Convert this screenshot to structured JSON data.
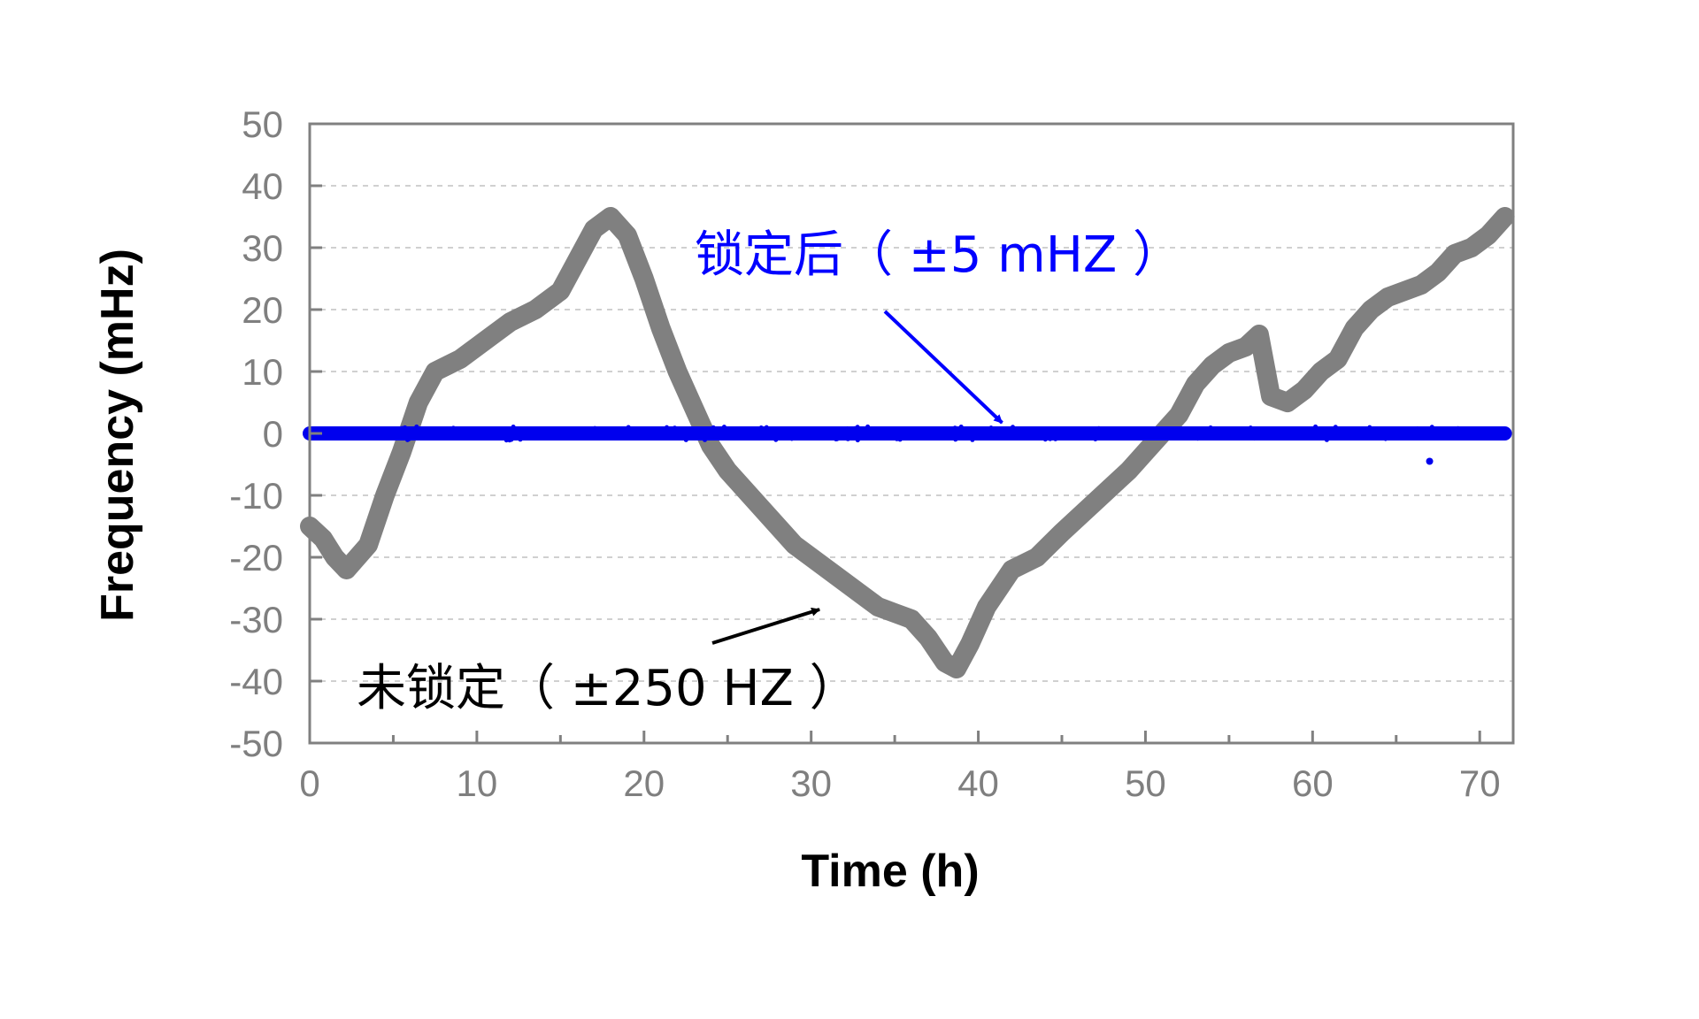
{
  "chart_data": {
    "type": "line",
    "xlabel": "Time (h)",
    "ylabel": "Frequency (mHz)",
    "xlim": [
      0,
      72
    ],
    "ylim": [
      -50,
      50
    ],
    "x_ticks": [
      0,
      10,
      20,
      30,
      40,
      50,
      60,
      70
    ],
    "y_ticks": [
      50,
      40,
      30,
      20,
      10,
      0,
      -10,
      -20,
      -30,
      -40,
      -50
    ],
    "grid": "horizontal dashed",
    "series": [
      {
        "color": "#808080",
        "style": "thick line",
        "x": [
          0,
          0.8,
          1.5,
          2.2,
          3.5,
          4.5,
          5.5,
          6.5,
          7.5,
          9,
          10.5,
          12,
          13.5,
          15,
          16,
          17,
          18,
          19,
          20,
          21,
          22,
          23,
          24,
          25,
          27,
          29,
          31,
          33,
          34,
          36,
          37,
          38,
          38.7,
          39.5,
          40.5,
          42,
          43.5,
          45,
          47,
          49,
          50,
          51,
          52,
          53,
          54,
          55,
          56,
          56.8,
          57.5,
          58.5,
          59.5,
          60.5,
          61.5,
          62.5,
          63.5,
          64.5,
          65.5,
          66.5,
          67.5,
          68.5,
          69.5,
          70.5,
          71.5
        ],
        "values": [
          -15,
          -17,
          -20,
          -22,
          -18,
          -10,
          -3,
          5,
          10,
          12,
          15,
          18,
          20,
          23,
          28,
          33,
          35,
          32,
          25,
          17,
          10,
          4,
          -2,
          -6,
          -12,
          -18,
          -22,
          -26,
          -28,
          -30,
          -33,
          -37,
          -38,
          -34,
          -28,
          -22,
          -20,
          -16,
          -11,
          -6,
          -3,
          0,
          3,
          8,
          11,
          13,
          14,
          16,
          6,
          5,
          7,
          10,
          12,
          17,
          20,
          22,
          23,
          24,
          26,
          29,
          30,
          32,
          35
        ]
      },
      {
        "color": "#0000ee",
        "style": "thick line with noise",
        "x": [
          0,
          71.5
        ],
        "values": [
          0,
          0
        ],
        "noise_mHz": 0.5
      }
    ],
    "outlier_points": [
      {
        "x": 67,
        "y": -4.5,
        "color": "#0000ee"
      }
    ],
    "annotations": [
      {
        "text": "锁定后（ ±5 mHZ ）",
        "color": "#0000ff",
        "points_to": {
          "x": 41,
          "y": 0
        }
      },
      {
        "text": "未锁定（ ±250 HZ ）",
        "color": "#000000",
        "points_to": {
          "x": 30.5,
          "y": -28
        }
      }
    ]
  }
}
